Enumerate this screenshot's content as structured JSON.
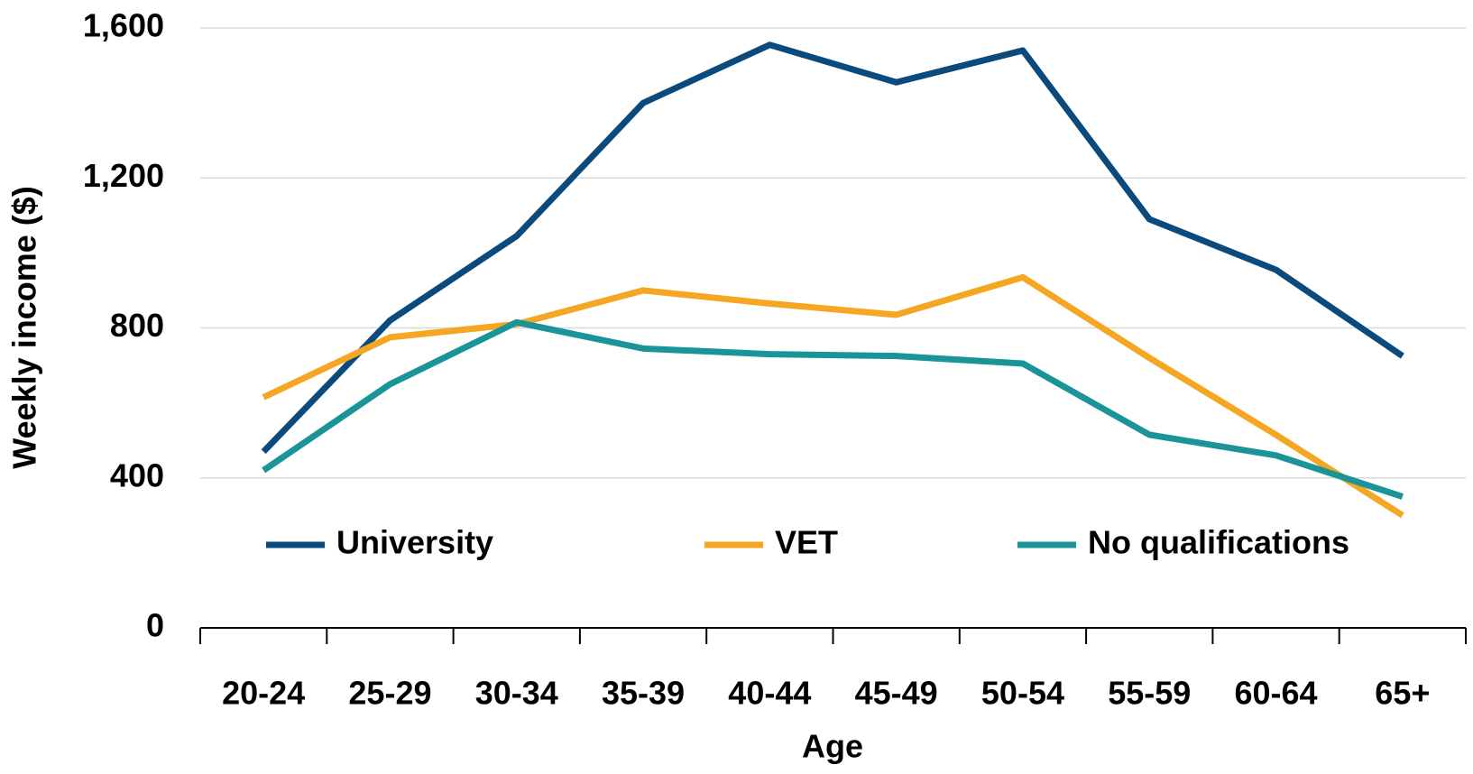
{
  "chart_data": {
    "type": "line",
    "x_label": "Age",
    "y_label": "Weekly income ($)",
    "categories": [
      "20-24",
      "25-29",
      "30-34",
      "35-39",
      "40-44",
      "45-49",
      "50-54",
      "55-59",
      "60-64",
      "65+"
    ],
    "series": [
      {
        "name": "University",
        "color": "#0b4a7d",
        "values": [
          470,
          820,
          1045,
          1400,
          1555,
          1455,
          1540,
          1090,
          955,
          725
        ]
      },
      {
        "name": "VET",
        "color": "#f5a623",
        "values": [
          615,
          775,
          810,
          900,
          865,
          835,
          935,
          720,
          515,
          300
        ]
      },
      {
        "name": "No qualifications",
        "color": "#1a9499",
        "values": [
          420,
          650,
          815,
          745,
          730,
          725,
          705,
          515,
          460,
          350
        ]
      }
    ],
    "ylim": [
      0,
      1600
    ],
    "yticks": [
      0,
      400,
      800,
      {
        "value": 1200,
        "label": "1,200"
      },
      {
        "value": 1600,
        "label": "1,600"
      }
    ],
    "grid": true
  }
}
